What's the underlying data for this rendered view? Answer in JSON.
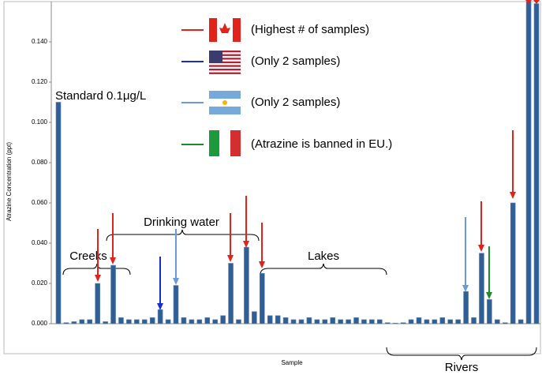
{
  "chart_data": {
    "type": "bar",
    "ylabel": "Atrazine Concentration (ppt)",
    "xlabel": "Sample",
    "categories": [
      null,
      null,
      null,
      null,
      null,
      null,
      null,
      null,
      null,
      null,
      null,
      null,
      null,
      null,
      null,
      null,
      null,
      null,
      null,
      null,
      null,
      null,
      null,
      null,
      null,
      null,
      null,
      null,
      null,
      null,
      null,
      null,
      null,
      null,
      null,
      null,
      null,
      null,
      null,
      null,
      null,
      null,
      null,
      null,
      null,
      null,
      null,
      null,
      null,
      null,
      null,
      null,
      null,
      null,
      null,
      null,
      null,
      null,
      null,
      null,
      null,
      null
    ],
    "values": [
      0.11,
      0.0005,
      0.001,
      0.002,
      0.002,
      0.02,
      0.001,
      0.029,
      0.003,
      0.002,
      0.002,
      0.002,
      0.003,
      0.007,
      0.002,
      0.019,
      0.003,
      0.002,
      0.002,
      0.003,
      0.002,
      0.004,
      0.03,
      0.002,
      0.038,
      0.006,
      0.025,
      0.004,
      0.004,
      0.003,
      0.002,
      0.002,
      0.003,
      0.002,
      0.002,
      0.003,
      0.002,
      0.002,
      0.003,
      0.002,
      0.002,
      0.002,
      0.0005,
      0.0003,
      0.0005,
      0.002,
      0.003,
      0.002,
      0.002,
      0.003,
      0.002,
      0.002,
      0.016,
      0.003,
      0.035,
      0.012,
      0.002,
      0.0005,
      0.06,
      0.002,
      0.16,
      0.159
    ],
    "color": "#2f5f95",
    "ylim": [
      0,
      0.16
    ],
    "yticks": [
      {
        "value": 0,
        "label": "0.000"
      },
      {
        "value": 0.02,
        "label": "0.020"
      },
      {
        "value": 0.04,
        "label": "0.040"
      },
      {
        "value": 0.06,
        "label": "0.060"
      },
      {
        "value": 0.08,
        "label": "0.080"
      },
      {
        "value": 0.1,
        "label": "0.100"
      },
      {
        "value": 0.12,
        "label": "0.120"
      },
      {
        "value": 0.14,
        "label": "0.140"
      }
    ],
    "legend": [
      "(Highest # of samples)",
      "(Only 2 samples)",
      "(Only 2 samples)",
      "(Atrazine is banned in EU.)"
    ],
    "annotations": [
      "Standard 0.1μg/L",
      "Creeks",
      "Drinking water",
      "Lakes",
      "Rivers"
    ]
  }
}
